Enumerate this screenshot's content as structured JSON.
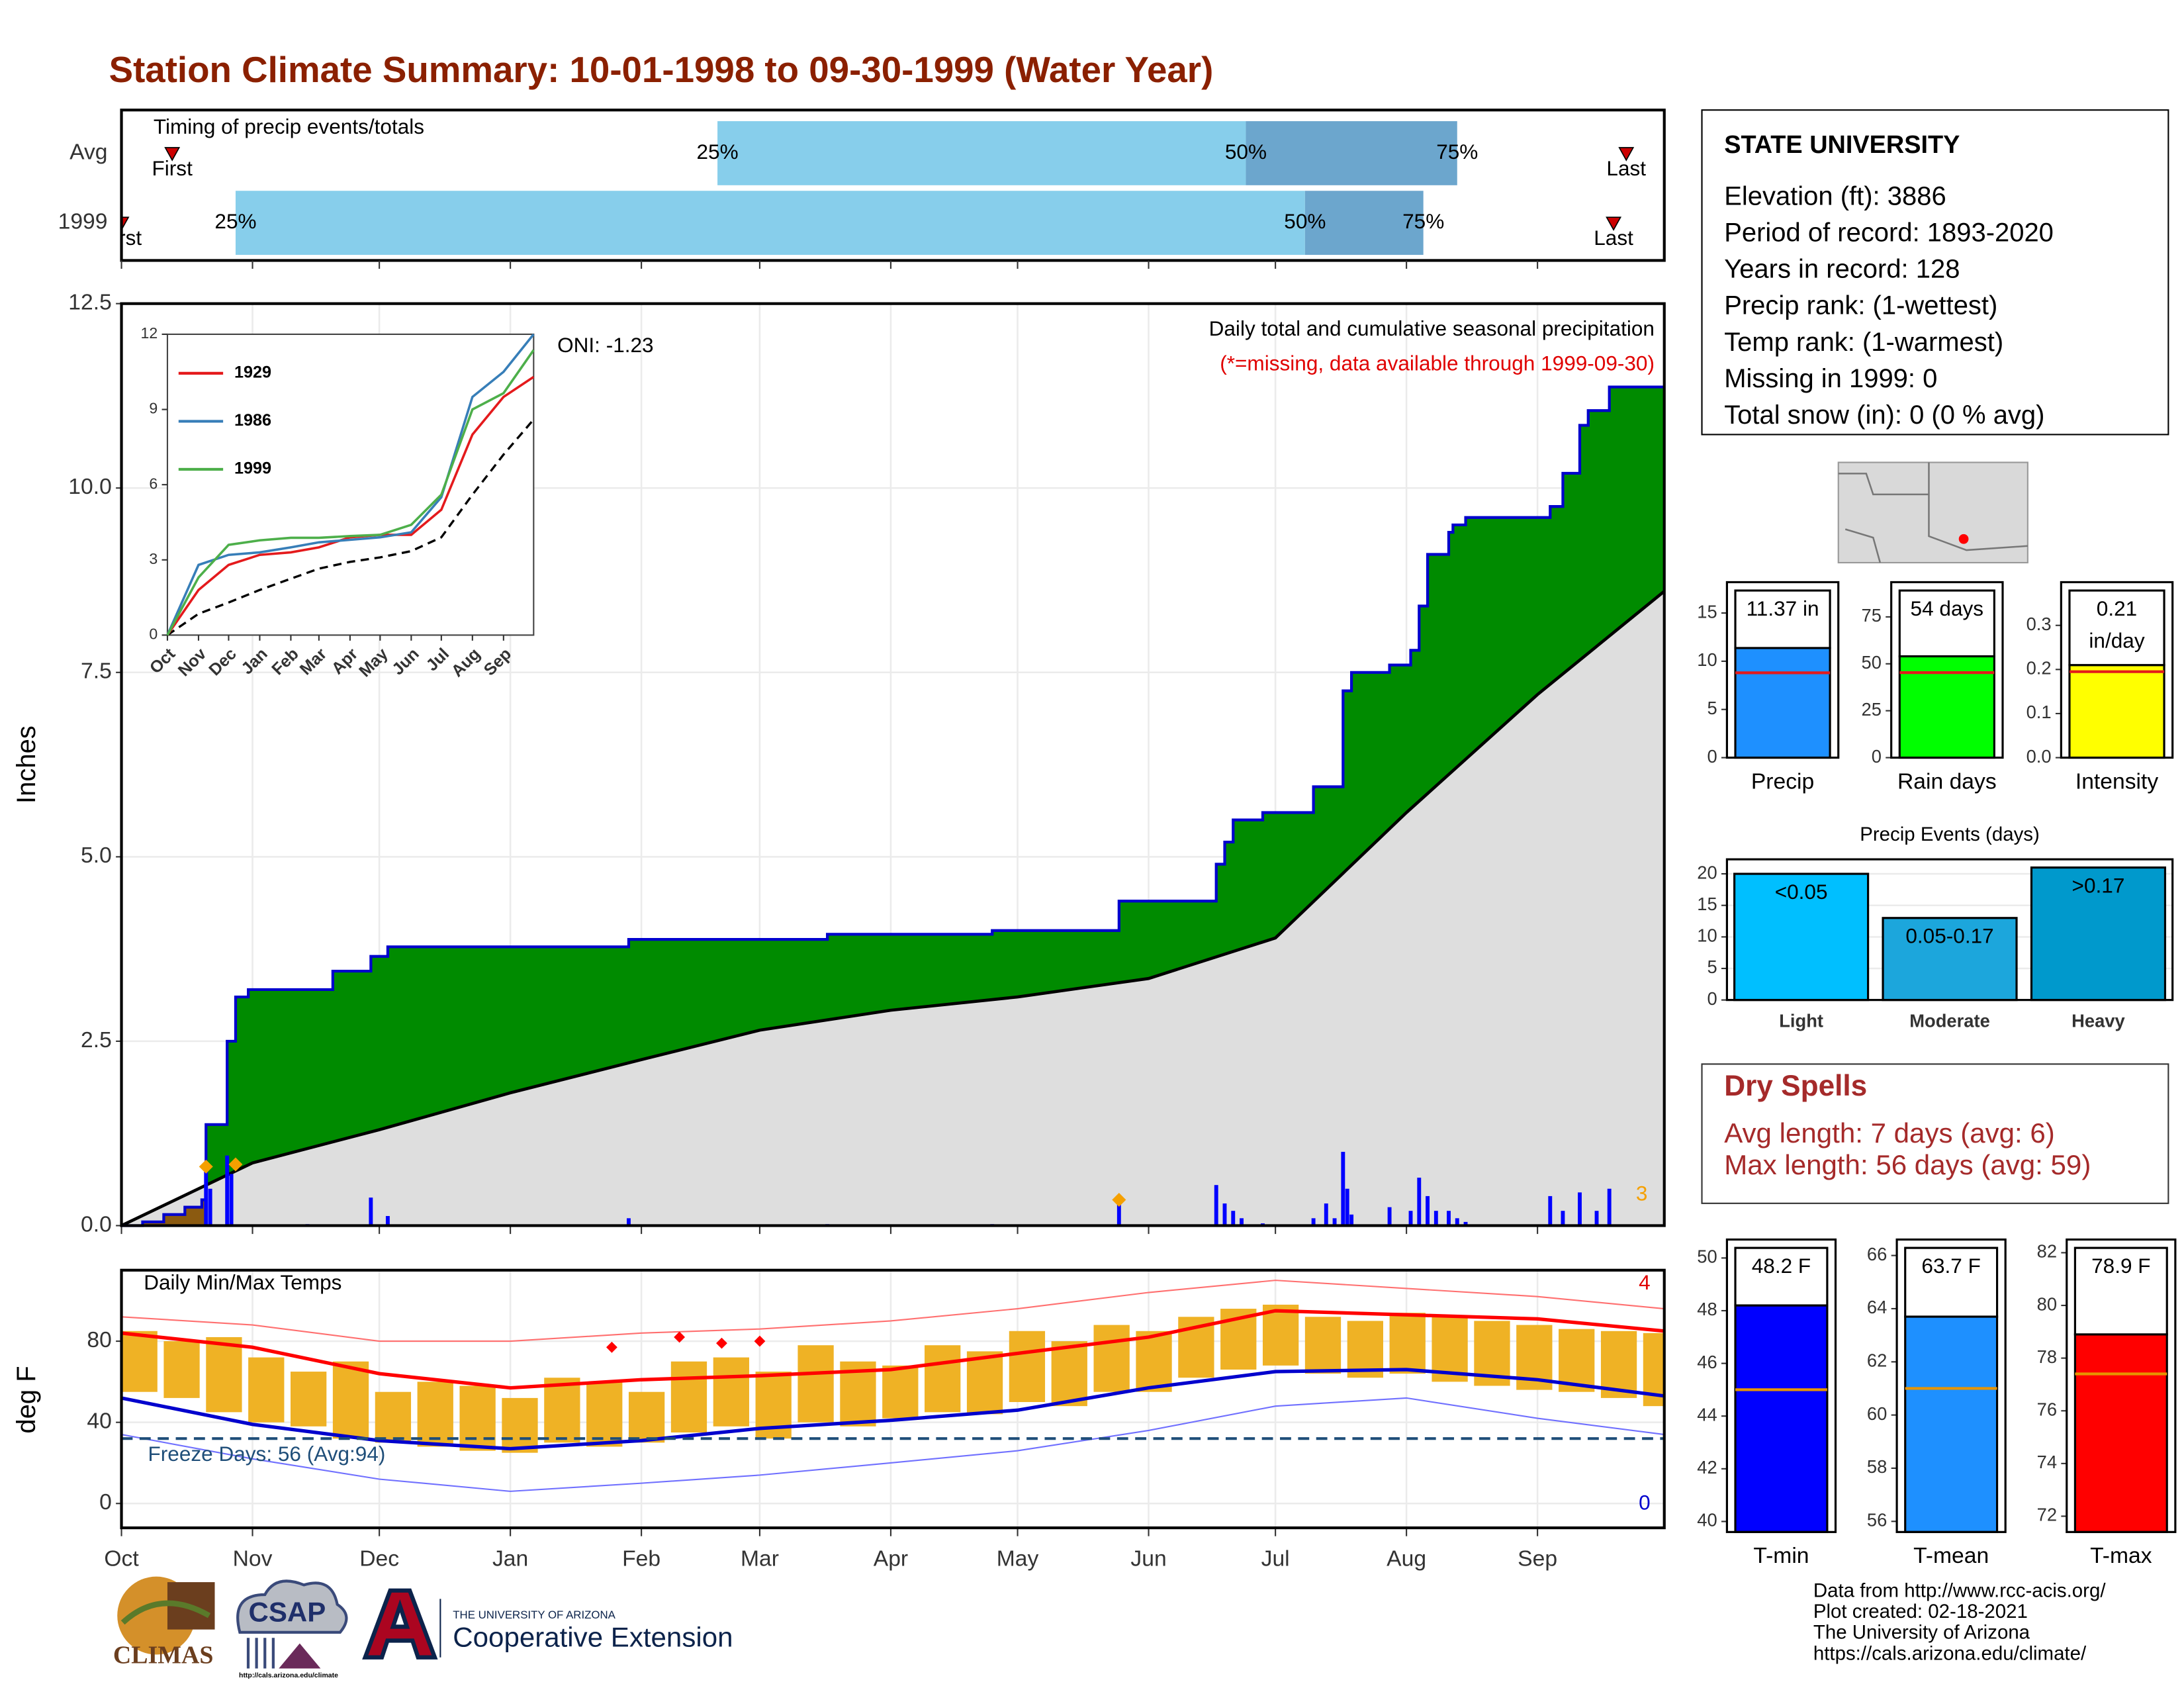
{
  "title": "Station Climate Summary: 10-01-1998 to 09-30-1999 (Water Year)",
  "chart_data": [
    {
      "type": "timing",
      "title": "Timing of precip events/totals",
      "xlim": [
        0,
        365
      ],
      "rows": [
        {
          "name": "Avg",
          "first": 12,
          "q25": 141,
          "q50": 266,
          "q75": 316,
          "last": 356
        },
        {
          "name": "1999",
          "first": 0,
          "q25": 27,
          "q50": 280,
          "q75": 308,
          "last": 353
        }
      ],
      "first_label": "First",
      "last_label": "Last",
      "quantile_labels": [
        "25%",
        "50%",
        "75%"
      ],
      "colors": [
        "#87ceeb",
        "#6ca6cd"
      ],
      "marker_color": "#cc0000"
    },
    {
      "type": "precip",
      "title": "Daily total and cumulative seasonal precipitation",
      "subtitle": "(*=missing, data available through 1999-09-30)",
      "annotation": "ONI: -1.23",
      "ylabel": "Inches",
      "xlim": [
        0,
        365
      ],
      "ylim": [
        0,
        12.5
      ],
      "yticks": [
        {
          "value": 0,
          "label": "0.0"
        },
        2.5,
        {
          "value": 5,
          "label": "5.0"
        },
        7.5,
        {
          "value": 10,
          "label": "10.0"
        },
        12.5
      ],
      "xticks": [
        0,
        31,
        61,
        92,
        123,
        151,
        182,
        212,
        243,
        273,
        304,
        335
      ],
      "grid": true,
      "observed_x": [
        0,
        5,
        10,
        15,
        19,
        20,
        25,
        27,
        30,
        50,
        59,
        63,
        120,
        167,
        206,
        236,
        259,
        261,
        263,
        270,
        282,
        289,
        291,
        300,
        305,
        307,
        309,
        314,
        315,
        318,
        338,
        341,
        345,
        347,
        352,
        365
      ],
      "observed": [
        0,
        0.05,
        0.15,
        0.25,
        0.35,
        1.37,
        2.5,
        3.1,
        3.2,
        3.45,
        3.65,
        3.78,
        3.88,
        3.95,
        4.0,
        4.4,
        4.9,
        5.2,
        5.5,
        5.6,
        5.95,
        7.25,
        7.5,
        7.6,
        7.8,
        8.4,
        9.1,
        9.4,
        9.5,
        9.6,
        9.75,
        10.2,
        10.85,
        11.05,
        11.37,
        11.37
      ],
      "normal_x": [
        0,
        31,
        61,
        92,
        123,
        151,
        182,
        212,
        243,
        273,
        304,
        335,
        365
      ],
      "normal": [
        0,
        0.85,
        1.3,
        1.8,
        2.25,
        2.65,
        2.92,
        3.1,
        3.35,
        3.9,
        5.6,
        7.2,
        8.6
      ],
      "daily_x": [
        20,
        21,
        25,
        26,
        44,
        59,
        63,
        120,
        167,
        206,
        236,
        259,
        261,
        263,
        265,
        270,
        282,
        285,
        287,
        289,
        290,
        291,
        300,
        305,
        307,
        309,
        311,
        314,
        316,
        318,
        338,
        341,
        345,
        349,
        352
      ],
      "daily": [
        0.75,
        0.5,
        0.95,
        0.7,
        0.02,
        0.38,
        0.13,
        0.1,
        0.02,
        0.02,
        0.3,
        0.55,
        0.3,
        0.2,
        0.1,
        0.03,
        0.1,
        0.3,
        0.1,
        1.0,
        0.5,
        0.15,
        0.25,
        0.2,
        0.65,
        0.4,
        0.2,
        0.2,
        0.1,
        0.05,
        0.4,
        0.2,
        0.45,
        0.2,
        0.5
      ],
      "extreme_x": [
        20,
        27,
        236
      ],
      "extreme": [
        0.8,
        0.83,
        0.35
      ],
      "extreme_count": 3,
      "colors": {
        "above": "#008b00",
        "below": "#8b5a10",
        "normal": "#dedede",
        "observed": "#0000cd",
        "daily": "#0000ff",
        "extreme": "#f5a000"
      }
    },
    {
      "type": "line",
      "xlim": [
        0,
        365
      ],
      "ylim": [
        0,
        12
      ],
      "yticks": [
        0,
        3,
        6,
        9,
        12
      ],
      "xticks": [
        {
          "value": 0,
          "label": "Oct"
        },
        {
          "value": 31,
          "label": "Nov"
        },
        {
          "value": 61,
          "label": "Dec"
        },
        {
          "value": 92,
          "label": "Jan"
        },
        {
          "value": 123,
          "label": "Feb"
        },
        {
          "value": 151,
          "label": "Mar"
        },
        {
          "value": 182,
          "label": "Apr"
        },
        {
          "value": 212,
          "label": "May"
        },
        {
          "value": 243,
          "label": "Jun"
        },
        {
          "value": 273,
          "label": "Jul"
        },
        {
          "value": 304,
          "label": "Aug"
        },
        {
          "value": 335,
          "label": "Sep"
        }
      ],
      "x": [
        0,
        31,
        61,
        92,
        123,
        151,
        182,
        212,
        243,
        273,
        304,
        335,
        365
      ],
      "series": [
        {
          "name": "1929",
          "color": "#e41a1c",
          "values": [
            0,
            1.8,
            2.8,
            3.2,
            3.3,
            3.5,
            3.9,
            4.0,
            4.0,
            5.0,
            8.0,
            9.5,
            10.3
          ]
        },
        {
          "name": "1986",
          "color": "#377eb8",
          "values": [
            0,
            2.8,
            3.2,
            3.3,
            3.5,
            3.7,
            3.8,
            3.9,
            4.1,
            5.5,
            9.5,
            10.5,
            12.0
          ]
        },
        {
          "name": "1999",
          "color": "#4daf4a",
          "values": [
            0,
            2.3,
            3.6,
            3.78,
            3.88,
            3.88,
            3.95,
            4.0,
            4.4,
            5.6,
            9.0,
            9.65,
            11.37
          ]
        }
      ],
      "normal_values": [
        0,
        0.85,
        1.3,
        1.8,
        2.25,
        2.65,
        2.92,
        3.1,
        3.35,
        3.9,
        5.6,
        7.2,
        8.6
      ]
    },
    {
      "type": "temps",
      "title": "Daily Min/Max Temps",
      "ylabel": "deg F",
      "xlim": [
        0,
        365
      ],
      "ylim": [
        -12,
        115
      ],
      "yticks": [
        0,
        40,
        80
      ],
      "grid": true,
      "xticks": [
        {
          "value": 0,
          "label": "Oct"
        },
        {
          "value": 31,
          "label": "Nov"
        },
        {
          "value": 61,
          "label": "Dec"
        },
        {
          "value": 92,
          "label": "Jan"
        },
        {
          "value": 123,
          "label": "Feb"
        },
        {
          "value": 151,
          "label": "Mar"
        },
        {
          "value": 182,
          "label": "Apr"
        },
        {
          "value": 212,
          "label": "May"
        },
        {
          "value": 243,
          "label": "Jun"
        },
        {
          "value": 273,
          "label": "Jul"
        },
        {
          "value": 304,
          "label": "Aug"
        },
        {
          "value": 335,
          "label": "Sep"
        }
      ],
      "bar_x": [
        0,
        10,
        20,
        30,
        40,
        50,
        60,
        70,
        80,
        90,
        100,
        110,
        120,
        130,
        140,
        150,
        160,
        170,
        180,
        190,
        200,
        210,
        220,
        230,
        240,
        250,
        260,
        270,
        280,
        290,
        300,
        310,
        320,
        330,
        340,
        350,
        360
      ],
      "bar_max": [
        85,
        80,
        82,
        72,
        65,
        70,
        55,
        60,
        58,
        52,
        62,
        60,
        55,
        70,
        72,
        65,
        78,
        70,
        68,
        78,
        75,
        85,
        80,
        88,
        85,
        92,
        96,
        98,
        92,
        90,
        94,
        92,
        90,
        88,
        86,
        85,
        84
      ],
      "bar_min": [
        55,
        52,
        45,
        40,
        38,
        32,
        30,
        28,
        26,
        25,
        30,
        28,
        30,
        35,
        38,
        32,
        40,
        38,
        42,
        45,
        44,
        50,
        48,
        55,
        55,
        62,
        66,
        68,
        64,
        62,
        64,
        60,
        58,
        56,
        55,
        52,
        48
      ],
      "line_x": [
        0,
        31,
        61,
        92,
        123,
        151,
        182,
        212,
        243,
        273,
        304,
        335,
        365
      ],
      "avg_max": [
        84,
        77,
        64,
        57,
        61,
        63,
        66,
        74,
        82,
        95,
        93,
        91,
        85
      ],
      "avg_min": [
        52,
        39,
        31,
        27,
        31,
        37,
        41,
        46,
        57,
        65,
        66,
        61,
        53
      ],
      "record_high": [
        92,
        88,
        80,
        80,
        84,
        86,
        90,
        96,
        104,
        110,
        106,
        102,
        96
      ],
      "record_low": [
        34,
        22,
        12,
        6,
        10,
        14,
        20,
        26,
        36,
        48,
        52,
        42,
        34
      ],
      "freeze_value": 32,
      "freeze_label": "Freeze Days: 56 (Avg:94)",
      "marker_x": [
        116,
        132,
        142,
        151
      ],
      "marker_values": [
        77,
        82,
        79,
        80
      ],
      "record_high_count": 4,
      "record_low_count": 0,
      "colors": {
        "bar": "#efb225",
        "avg_max": "#ff0000",
        "avg_min": "#0000cd",
        "record_high": "#ff7070",
        "record_low": "#7070ff",
        "freeze": "#1f4e79",
        "marker": "#ff0000"
      }
    },
    {
      "type": "summary",
      "category": "Precip",
      "value": 11.37,
      "value_label": "11.37 in",
      "average": 8.8,
      "ylim": [
        0,
        18.2
      ],
      "yticks": [
        0,
        5,
        10,
        15
      ],
      "color": "#1e90ff",
      "average_color": "#e31a1c"
    },
    {
      "type": "summary",
      "category": "Rain days",
      "value": 54,
      "value_label": "54 days",
      "average": 45.3,
      "ylim": [
        0,
        93.5
      ],
      "yticks": [
        0,
        25,
        50,
        75
      ],
      "color": "#00ff00",
      "average_color": "#e31a1c"
    },
    {
      "type": "summary",
      "category": "Intensity",
      "value": 0.21,
      "value_label": "0.21 in/day",
      "average": 0.195,
      "ylim": [
        0,
        0.398
      ],
      "yticks": [
        {
          "value": 0,
          "label": "0.0"
        },
        0.1,
        0.2,
        0.3
      ],
      "color": "#ffff00",
      "average_color": "#e31a1c"
    },
    {
      "type": "bar",
      "title": "Precip Events (days)",
      "categories": [
        "Light",
        "Moderate",
        "Heavy"
      ],
      "values": [
        20,
        13,
        21
      ],
      "category_ranges": [
        "<0.05",
        "0.05-0.17",
        ">0.17"
      ],
      "colors": [
        "#00bfff",
        "#1ca6dc",
        "#0099cc"
      ],
      "ylim": [
        0,
        22.3
      ],
      "yticks": [
        0,
        5,
        10,
        15,
        20
      ],
      "grid": true
    },
    {
      "type": "summary",
      "category": "T-min",
      "value": 48.2,
      "value_label": "48.2 F",
      "average": 45,
      "ylim": [
        39.6,
        50.7
      ],
      "yticks": [
        40,
        42,
        44,
        46,
        48,
        50
      ],
      "color": "#0000ff",
      "average_color": "#e69500"
    },
    {
      "type": "summary",
      "category": "T-mean",
      "value": 63.7,
      "value_label": "63.7 F",
      "average": 61,
      "ylim": [
        55.6,
        66.6
      ],
      "yticks": [
        56,
        58,
        60,
        62,
        64,
        66
      ],
      "color": "#1e90ff",
      "average_color": "#e69500"
    },
    {
      "type": "summary",
      "category": "T-max",
      "value": 78.9,
      "value_label": "78.9 F",
      "average": 77.4,
      "ylim": [
        71.4,
        82.5
      ],
      "yticks": [
        72,
        74,
        76,
        78,
        80,
        82
      ],
      "color": "#ff0000",
      "average_color": "#e69500"
    }
  ],
  "station": {
    "name": "STATE UNIVERSITY",
    "lines": [
      "Elevation (ft): 3886",
      "Period of record: 1893-2020",
      "Years in record: 128",
      "Precip rank:  (1-wettest)",
      "Temp rank:  (1-warmest)",
      "Missing in 1999: 0",
      "Total snow (in): 0 (0 % avg)"
    ]
  },
  "dry_spells": {
    "title": "Dry Spells",
    "lines": [
      "Avg length: 7 days (avg: 6)",
      "Max length: 56 days (avg: 59)"
    ]
  },
  "credits": [
    "Data from http://www.rcc-acis.org/",
    "Plot created: 02-18-2021",
    "The University of Arizona",
    "https://cals.arizona.edu/climate/"
  ],
  "logos": {
    "climas": "CLIMAS",
    "csap": "CSAP",
    "csap_url": "http://cals.arizona.edu/climate",
    "ua": "THE UNIVERSITY OF ARIZONA",
    "extension": "Cooperative Extension"
  }
}
